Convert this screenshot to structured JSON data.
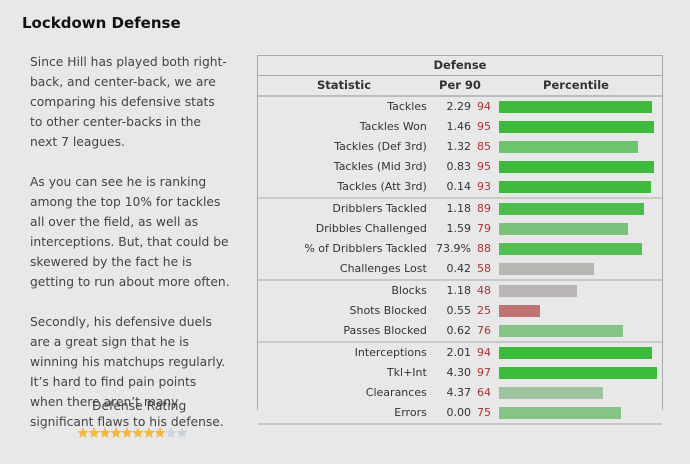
{
  "header": {
    "title": "Lockdown Defense"
  },
  "paragraphs": [
    "Since Hill has played both right-back, and center-back, we are comparing his defensive stats to other center-backs in the next 7 leagues.",
    "As you can see he is ranking among the top 10% for tackles all over the field, as well as interceptions. But, that could be skewered by the fact he is getting to run about more often.",
    "Secondly, his defensive duels are a great sign that he is winning his matchups regularly. It’s hard to find pain points when there aren’t many significant flaws to his defense."
  ],
  "rating": {
    "label": "Defense Rating",
    "value": 8,
    "max": 10,
    "filled_color": "#f4b740",
    "empty_color": "#c9d3de"
  },
  "table": {
    "title": "Defense",
    "columns": [
      "Statistic",
      "Per 90",
      "Percentile"
    ],
    "percentile_max": 100,
    "groups": [
      [
        [
          "Tackles",
          "2.29",
          94,
          "#3dbb3d"
        ],
        [
          "Tackles Won",
          "1.46",
          95,
          "#3dbb3d"
        ],
        [
          "Tackles (Def 3rd)",
          "1.32",
          85,
          "#6cc46c"
        ],
        [
          "Tackles (Mid 3rd)",
          "0.83",
          95,
          "#3dbb3d"
        ],
        [
          "Tackles (Att 3rd)",
          "0.14",
          93,
          "#3dbb3d"
        ]
      ],
      [
        [
          "Dribblers Tackled",
          "1.18",
          89,
          "#4dbd4d"
        ],
        [
          "Dribbles Challenged",
          "1.59",
          79,
          "#7bc17b"
        ],
        [
          "% of Dribblers Tackled",
          "73.9%",
          88,
          "#55be55"
        ],
        [
          "Challenges Lost",
          "0.42",
          58,
          "#b4b8b0"
        ]
      ],
      [
        [
          "Blocks",
          "1.18",
          48,
          "#b9b5b5"
        ],
        [
          "Shots Blocked",
          "0.55",
          25,
          "#c07373"
        ],
        [
          "Passes Blocked",
          "0.62",
          76,
          "#84c484"
        ]
      ],
      [
        [
          "Interceptions",
          "2.01",
          94,
          "#3dbb3d"
        ],
        [
          "Tkl+Int",
          "4.30",
          97,
          "#3dbb3d"
        ],
        [
          "Clearances",
          "4.37",
          64,
          "#a0c29f"
        ],
        [
          "Errors",
          "0.00",
          75,
          "#86c486"
        ]
      ]
    ]
  }
}
